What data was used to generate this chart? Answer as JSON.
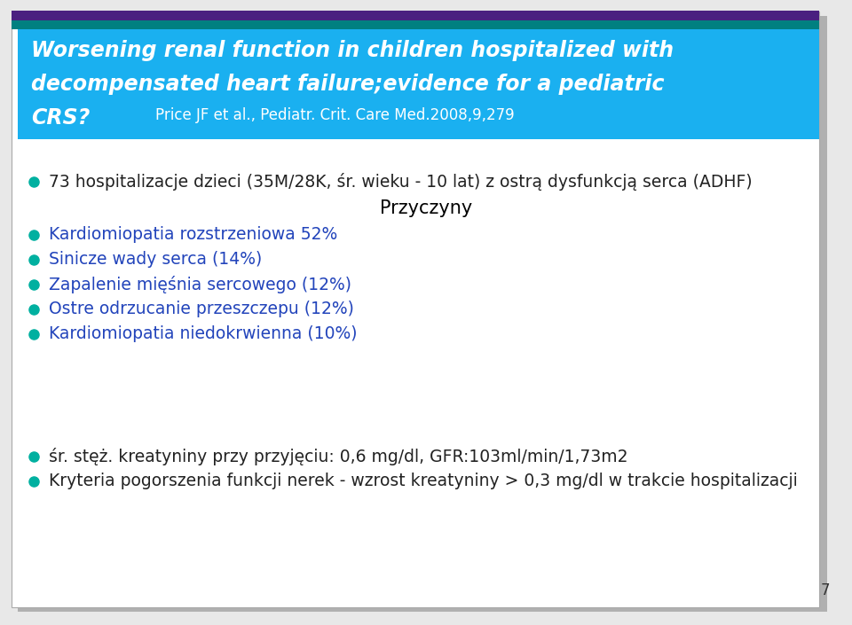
{
  "bg_color": "#e8e8e8",
  "slide_bg": "#ffffff",
  "header_bg": "#1ab0f0",
  "header_text_color": "#ffffff",
  "header_ref_color": "#ffffff",
  "top_bar_purple": "#4a2080",
  "top_bar_teal": "#008080",
  "bullet_dot_color": "#00b0a0",
  "bullet_blue_color": "#2244bb",
  "bullet_dark_color": "#222222",
  "center_title_color": "#000000",
  "header_text_line1": "Worsening renal function in children hospitalized with",
  "header_text_line2": "decompensated heart failure;evidence for a pediatric",
  "header_text_line3": "CRS?",
  "header_ref": "Price JF et al., Pediatr. Crit. Care Med.2008,9,279",
  "bullet1_text": "73 hospitalizacje dzieci (35M/28K, śr. wieku - 10 lat) z ostrą dysfunkcją serca (ADHF)",
  "center_title": "Przyczyny",
  "bullets_colored": [
    "Kardiomiopatia rozstrzeniowa 52%",
    "Sinicze wady serca (14%)",
    "Zapalenie mięśnia sercowego (12%)",
    "Ostre odrzucanie przeszczepu (12%)",
    "Kardiomiopatia niedokrwienna (10%)"
  ],
  "bullets_dark": [
    "śr. stęż. kreatyniny przy przyjęciu: 0,6 mg/dl, GFR:103ml/min/1,73m2",
    "Kryteria pogorszenia funkcji nerek - wzrost kreatyniny > 0,3 mg/dl w trakcie hospitalizacji"
  ],
  "page_number": "7",
  "shadow_color": "#b0b0b0"
}
